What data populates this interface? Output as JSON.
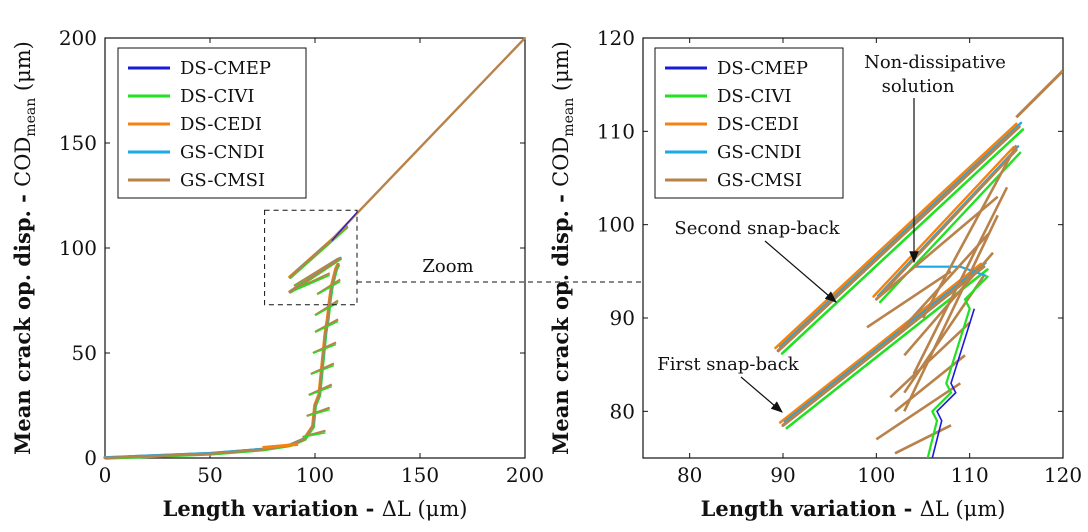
{
  "chart_data": [
    {
      "type": "line",
      "xlabel": "Length variation - ΔL (μm)",
      "ylabel": "Mean crack op. disp. - COD_mean (μm)",
      "xlim": [
        0,
        200
      ],
      "ylim": [
        0,
        200
      ],
      "xticks": [
        0,
        50,
        100,
        150,
        200
      ],
      "yticks": [
        0,
        50,
        100,
        150,
        200
      ],
      "legend_position": "top-left",
      "zoom_box": {
        "x": [
          76,
          120
        ],
        "y": [
          73,
          118
        ]
      },
      "annotations": [
        {
          "text": "Zoom"
        }
      ],
      "series": [
        {
          "name": "DS-CMEP",
          "color": "#1a1adc"
        },
        {
          "name": "DS-CIVI",
          "color": "#22e022"
        },
        {
          "name": "DS-CEDI",
          "color": "#f5820f"
        },
        {
          "name": "GS-CNDI",
          "color": "#1aa8e6"
        },
        {
          "name": "GS-CMSI",
          "color": "#b8824a"
        }
      ],
      "curve": {
        "x": [
          0,
          50,
          80,
          95,
          99,
          100,
          101,
          103,
          104,
          105,
          106,
          107,
          108,
          109,
          110,
          111,
          112,
          105,
          110,
          108,
          114,
          90,
          117,
          200
        ],
        "y": [
          0,
          2,
          5,
          10,
          15,
          20,
          25,
          30,
          40,
          45,
          55,
          60,
          66,
          70,
          75,
          78,
          85,
          80,
          94,
          86,
          96,
          79,
          117,
          200
        ]
      }
    },
    {
      "type": "line",
      "xlabel": "Length variation - ΔL (μm)",
      "ylabel": "Mean crack op. disp. - COD_mean (μm)",
      "xlim": [
        75,
        120
      ],
      "ylim": [
        75,
        120
      ],
      "xticks": [
        80,
        90,
        100,
        110,
        120
      ],
      "yticks": [
        80,
        90,
        100,
        110,
        120
      ],
      "legend_position": "top-left",
      "annotations": [
        {
          "text": "Non-dissipative"
        },
        {
          "text": "solution"
        },
        {
          "text": "Second snap-back"
        },
        {
          "text": "First snap-back"
        }
      ],
      "series": [
        {
          "name": "DS-CMEP",
          "color": "#1a1adc"
        },
        {
          "name": "DS-CIVI",
          "color": "#22e022"
        },
        {
          "name": "DS-CEDI",
          "color": "#f5820f"
        },
        {
          "name": "GS-CNDI",
          "color": "#1aa8e6"
        },
        {
          "name": "GS-CMSI",
          "color": "#b8824a"
        }
      ],
      "upper_branch": {
        "x": [
          89.5,
          115.3
        ],
        "y": [
          86.5,
          110.5
        ]
      },
      "lower_branch": {
        "x": [
          90,
          111.5
        ],
        "y": [
          78.5,
          95.5
        ]
      },
      "middle_branch": {
        "x": [
          100,
          115
        ],
        "y": [
          92,
          108
        ]
      },
      "final_branch": {
        "x": [
          115,
          120
        ],
        "y": [
          111.5,
          116.5
        ]
      },
      "cluster_1": {
        "x": [
          104,
          106,
          108,
          109,
          110,
          112
        ],
        "y": [
          75,
          78,
          80,
          82,
          91,
          94.5
        ]
      },
      "cnd_jump": {
        "x": [
          104,
          109,
          111.8
        ],
        "y": [
          95.5,
          95.5,
          94.5
        ]
      }
    }
  ]
}
